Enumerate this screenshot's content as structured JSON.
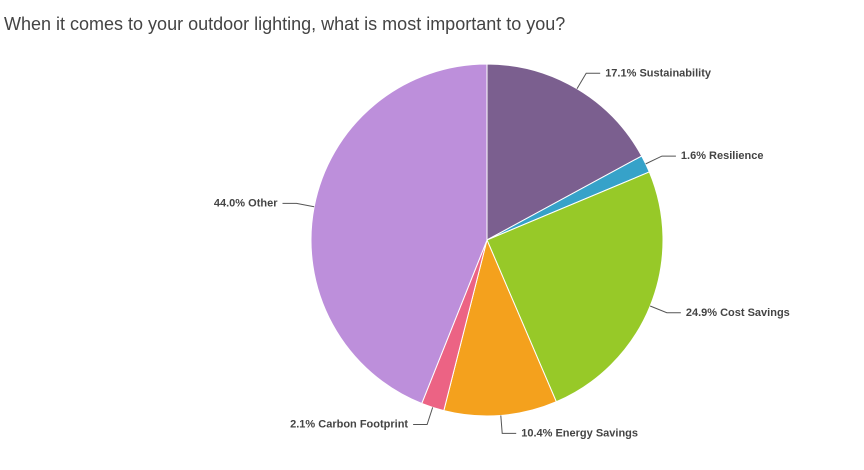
{
  "chart_data": {
    "type": "pie",
    "title": "When it comes to your outdoor lighting, what is most important to you?",
    "categories": [
      "Sustainability",
      "Resilience",
      "Cost Savings",
      "Energy Savings",
      "Carbon Footprint",
      "Other"
    ],
    "values": [
      17.1,
      1.6,
      24.9,
      10.4,
      2.1,
      44.0
    ],
    "value_labels": [
      "17.1%",
      "1.6%",
      "24.9%",
      "10.4%",
      "2.1%",
      "44.0%"
    ],
    "colors": [
      "#7b5f8f",
      "#36a2c9",
      "#97c928",
      "#f4a11d",
      "#ec6384",
      "#bd8fdb"
    ]
  }
}
